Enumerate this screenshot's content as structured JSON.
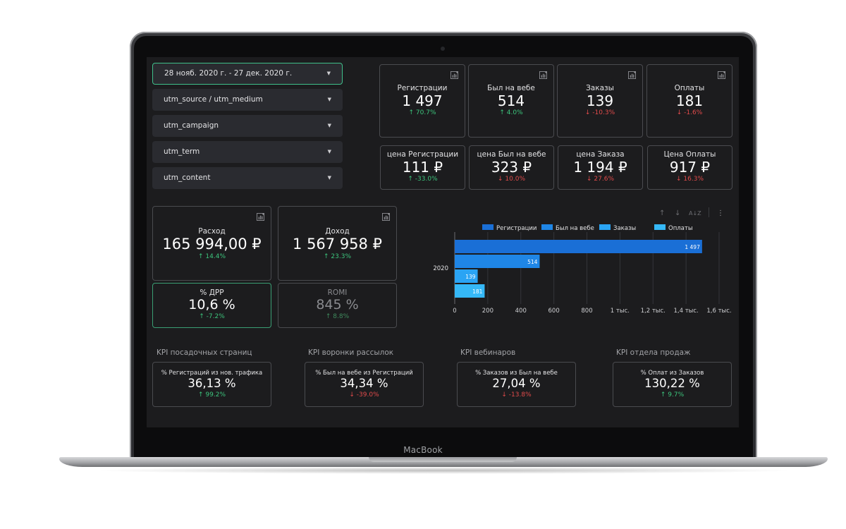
{
  "device": {
    "brand": "MacBook"
  },
  "filters": [
    {
      "label": "28 нояб. 2020 г. - 27 дек. 2020 г.",
      "active": true
    },
    {
      "label": "utm_source / utm_medium"
    },
    {
      "label": "utm_campaign"
    },
    {
      "label": "utm_term"
    },
    {
      "label": "utm_content"
    }
  ],
  "top_kpis": [
    {
      "title": "Регистрации",
      "value": "1 497",
      "delta": "70.7%",
      "dir": "up"
    },
    {
      "title": "Был на вебе",
      "value": "514",
      "delta": "4.0%",
      "dir": "up"
    },
    {
      "title": "Заказы",
      "value": "139",
      "delta": "-10.3%",
      "dir": "down"
    },
    {
      "title": "Оплаты",
      "value": "181",
      "delta": "-1.6%",
      "dir": "down"
    }
  ],
  "price_kpis": [
    {
      "title": "цена Регистрации",
      "value": "111 ₽",
      "delta": "-33.0%",
      "dir": "up"
    },
    {
      "title": "цена Был на вебе",
      "value": "323 ₽",
      "delta": "10.0%",
      "dir": "down"
    },
    {
      "title": "цена Заказа",
      "value": "1 194 ₽",
      "delta": "27.6%",
      "dir": "down"
    },
    {
      "title": "Цена Оплаты",
      "value": "917 ₽",
      "delta": "16.3%",
      "dir": "down"
    }
  ],
  "finance": [
    {
      "title": "Расход",
      "value": "165 994,00 ₽",
      "delta": "14.4%",
      "dir": "up"
    },
    {
      "title": "Доход",
      "value": "1 567 958 ₽",
      "delta": "23.3%",
      "dir": "up"
    },
    {
      "title": "% ДРР",
      "value": "10,6 %",
      "delta": "-7.2%",
      "dir": "up"
    },
    {
      "title": "ROMI",
      "value": "845 %",
      "delta": "8.8%",
      "dir": "up"
    }
  ],
  "kpi_groups": [
    {
      "heading": "KPI посадочных страниц",
      "title": "% Регистраций из нов. трафика",
      "value": "36,13 %",
      "delta": "99.2%",
      "dir": "up"
    },
    {
      "heading": "KPI воронки рассылок",
      "title": "% Был на вебе из Регистраций",
      "value": "34,34 %",
      "delta": "-39.0%",
      "dir": "down"
    },
    {
      "heading": "KPI вебинаров",
      "title": "% Заказов из Был на вебе",
      "value": "27,04 %",
      "delta": "-13.8%",
      "dir": "down"
    },
    {
      "heading": "KPI отдела продаж",
      "title": "% Оплат из Заказов",
      "value": "130,22 %",
      "delta": "9.7%",
      "dir": "up"
    }
  ],
  "icons": {
    "up_arrow": "↑",
    "down_arrow": "↓",
    "caret": "▼",
    "sort_up": "↑",
    "sort_down": "↓",
    "sort_az": "A↓Z",
    "more": "⋮"
  },
  "colors": {
    "up": "#3cc47c",
    "down": "#e14b4b",
    "accent_border": "#3fbf8a"
  },
  "chart_data": {
    "type": "bar",
    "orientation": "horizontal",
    "categories": [
      "2020"
    ],
    "series": [
      {
        "name": "Регистрации",
        "values": [
          1497
        ],
        "color": "#1a6fd6"
      },
      {
        "name": "Был на вебе",
        "values": [
          514
        ],
        "color": "#1f86e6"
      },
      {
        "name": "Заказы",
        "values": [
          139
        ],
        "color": "#2aa4f4"
      },
      {
        "name": "Оплаты",
        "values": [
          181
        ],
        "color": "#35b8f7"
      }
    ],
    "data_labels": [
      "1 497",
      "514",
      "139",
      "181"
    ],
    "xlim": [
      0,
      1600
    ],
    "x_ticks": [
      "0",
      "200",
      "400",
      "600",
      "800",
      "1 тыс.",
      "1,2 тыс.",
      "1,4 тыс.",
      "1,6 тыс."
    ],
    "grid": true,
    "legend": "top"
  }
}
